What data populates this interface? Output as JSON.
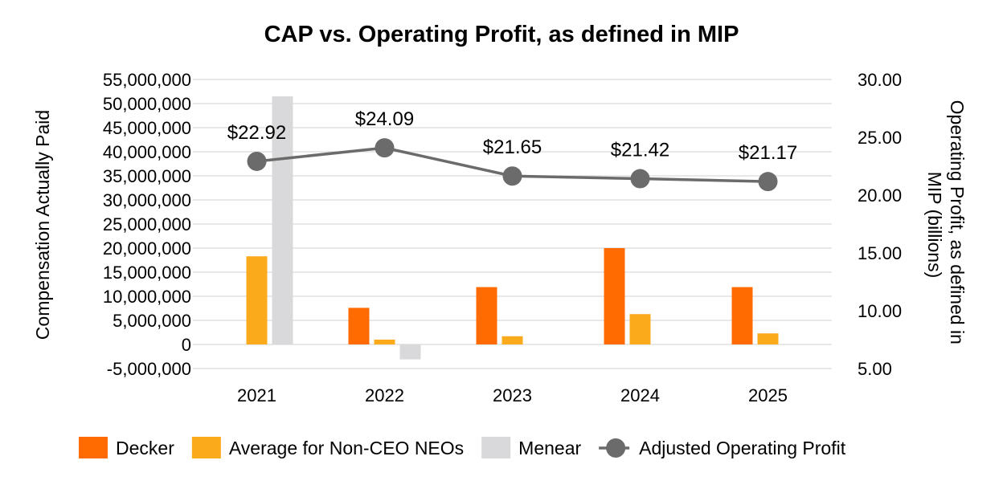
{
  "chart_data": {
    "type": "bar",
    "title": "CAP vs. Operating Profit, as defined in MIP",
    "categories": [
      "2021",
      "2022",
      "2023",
      "2024",
      "2025"
    ],
    "ylabel_left": "Compensation Actually Paid",
    "ylabel_right_lines": [
      "Operating Profit, as defined in",
      "MIP  (billions)"
    ],
    "y_left": {
      "min": -5000000,
      "max": 55000000,
      "step": 5000000,
      "tick_labels": [
        "-5,000,000",
        "0",
        "5,000,000",
        "10,000,000",
        "15,000,000",
        "20,000,000",
        "25,000,000",
        "30,000,000",
        "35,000,000",
        "40,000,000",
        "45,000,000",
        "50,000,000",
        "55,000,000"
      ]
    },
    "y_right": {
      "min": 5,
      "max": 30,
      "step": 5,
      "tick_labels": [
        "5.00",
        "10.00",
        "15.00",
        "20.00",
        "25.00",
        "30.00"
      ]
    },
    "grid": true,
    "legend_position": "bottom",
    "series": [
      {
        "name": "Decker",
        "type": "bar",
        "axis": "left",
        "color": "#FF6B00",
        "values": [
          null,
          7600000,
          11900000,
          20000000,
          11900000
        ]
      },
      {
        "name": "Average for Non-CEO NEOs",
        "type": "bar",
        "axis": "left",
        "color": "#FBAA1C",
        "values": [
          18300000,
          1000000,
          1700000,
          6300000,
          2300000
        ]
      },
      {
        "name": "Menear",
        "type": "bar",
        "axis": "left",
        "color": "#D9D9DB",
        "values": [
          51500000,
          -3100000,
          null,
          null,
          null
        ]
      },
      {
        "name": "Adjusted Operating Profit",
        "type": "line",
        "axis": "right",
        "color": "#6B6B6B",
        "values": [
          22.92,
          24.09,
          21.65,
          21.42,
          21.17
        ],
        "data_labels": [
          "$22.92",
          "$24.09",
          "$21.65",
          "$21.42",
          "$21.17"
        ]
      }
    ]
  }
}
